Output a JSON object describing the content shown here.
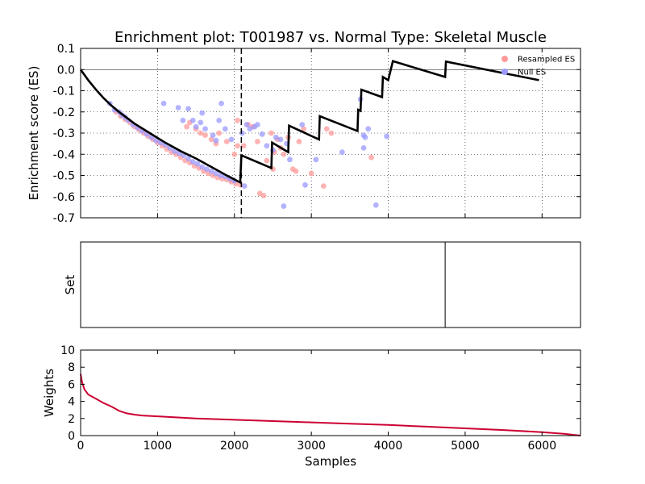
{
  "chart_data": [
    {
      "type": "line",
      "title": "Enrichment plot: T001987 vs. Normal Type: Skeletal Muscle",
      "ylabel": "Enrichment score (ES)",
      "xlim": [
        0,
        6500
      ],
      "ylim": [
        -0.7,
        0.1
      ],
      "yticks": [
        "0.1",
        "0.0",
        "-0.1",
        "-0.2",
        "-0.3",
        "-0.4",
        "-0.5",
        "-0.6",
        "-0.7"
      ],
      "grid": true,
      "legend_placement": "top-right",
      "legend": [
        {
          "label": "Resampled ES",
          "color": "#ff9999"
        },
        {
          "label": "Null ES",
          "color": "#9999ff"
        }
      ],
      "vline_x": 2090,
      "zero_line": 0.0,
      "es_curve": {
        "color": "#000000",
        "points": [
          [
            0,
            0.0
          ],
          [
            100,
            -0.05
          ],
          [
            200,
            -0.095
          ],
          [
            300,
            -0.135
          ],
          [
            400,
            -0.17
          ],
          [
            500,
            -0.2
          ],
          [
            700,
            -0.255
          ],
          [
            900,
            -0.3
          ],
          [
            1100,
            -0.345
          ],
          [
            1300,
            -0.385
          ],
          [
            1500,
            -0.42
          ],
          [
            1700,
            -0.46
          ],
          [
            1900,
            -0.5
          ],
          [
            2075,
            -0.533
          ],
          [
            2090,
            -0.405
          ],
          [
            2480,
            -0.465
          ],
          [
            2490,
            -0.345
          ],
          [
            2700,
            -0.39
          ],
          [
            2710,
            -0.265
          ],
          [
            3100,
            -0.33
          ],
          [
            3110,
            -0.22
          ],
          [
            3600,
            -0.29
          ],
          [
            3610,
            -0.19
          ],
          [
            3640,
            -0.195
          ],
          [
            3650,
            -0.095
          ],
          [
            3920,
            -0.13
          ],
          [
            3930,
            -0.035
          ],
          [
            4000,
            -0.05
          ],
          [
            4060,
            0.04
          ],
          [
            4740,
            -0.035
          ],
          [
            4750,
            0.038
          ],
          [
            5960,
            -0.05
          ]
        ]
      },
      "series": [
        {
          "name": "Resampled ES",
          "color": "#ff9999",
          "points": [
            [
              460,
              -0.2
            ],
            [
              520,
              -0.22
            ],
            [
              580,
              -0.235
            ],
            [
              640,
              -0.25
            ],
            [
              700,
              -0.27
            ],
            [
              760,
              -0.285
            ],
            [
              820,
              -0.3
            ],
            [
              880,
              -0.315
            ],
            [
              940,
              -0.33
            ],
            [
              1000,
              -0.345
            ],
            [
              1060,
              -0.36
            ],
            [
              1120,
              -0.375
            ],
            [
              1180,
              -0.39
            ],
            [
              1240,
              -0.4
            ],
            [
              1300,
              -0.415
            ],
            [
              1360,
              -0.43
            ],
            [
              1420,
              -0.44
            ],
            [
              1480,
              -0.455
            ],
            [
              1540,
              -0.465
            ],
            [
              1600,
              -0.48
            ],
            [
              1660,
              -0.49
            ],
            [
              1720,
              -0.5
            ],
            [
              1780,
              -0.51
            ],
            [
              1840,
              -0.515
            ],
            [
              1900,
              -0.52
            ],
            [
              1960,
              -0.53
            ],
            [
              2020,
              -0.54
            ],
            [
              2080,
              -0.545
            ],
            [
              1380,
              -0.27
            ],
            [
              1420,
              -0.25
            ],
            [
              1500,
              -0.28
            ],
            [
              1560,
              -0.3
            ],
            [
              1620,
              -0.31
            ],
            [
              1700,
              -0.33
            ],
            [
              1760,
              -0.35
            ],
            [
              1800,
              -0.3
            ],
            [
              1900,
              -0.34
            ],
            [
              2000,
              -0.4
            ],
            [
              2040,
              -0.36
            ],
            [
              2040,
              -0.24
            ],
            [
              2120,
              -0.36
            ],
            [
              2180,
              -0.26
            ],
            [
              2240,
              -0.27
            ],
            [
              2300,
              -0.34
            ],
            [
              2330,
              -0.585
            ],
            [
              2380,
              -0.595
            ],
            [
              2420,
              -0.43
            ],
            [
              2480,
              -0.3
            ],
            [
              2500,
              -0.47
            ],
            [
              2520,
              -0.39
            ],
            [
              2560,
              -0.33
            ],
            [
              2600,
              -0.37
            ],
            [
              2640,
              -0.4
            ],
            [
              2700,
              -0.32
            ],
            [
              2760,
              -0.47
            ],
            [
              2800,
              -0.48
            ],
            [
              2840,
              -0.34
            ],
            [
              2900,
              -0.28
            ],
            [
              3000,
              -0.49
            ],
            [
              3160,
              -0.55
            ],
            [
              3200,
              -0.28
            ],
            [
              3260,
              -0.3
            ],
            [
              3780,
              -0.415
            ],
            [
              1960,
              -0.52
            ]
          ]
        },
        {
          "name": "Null ES",
          "color": "#9999ff",
          "points": [
            [
              380,
              -0.16
            ],
            [
              440,
              -0.19
            ],
            [
              500,
              -0.2
            ],
            [
              540,
              -0.215
            ],
            [
              580,
              -0.225
            ],
            [
              620,
              -0.24
            ],
            [
              680,
              -0.26
            ],
            [
              740,
              -0.275
            ],
            [
              800,
              -0.29
            ],
            [
              860,
              -0.305
            ],
            [
              920,
              -0.32
            ],
            [
              980,
              -0.335
            ],
            [
              1040,
              -0.345
            ],
            [
              1100,
              -0.355
            ],
            [
              1160,
              -0.37
            ],
            [
              1220,
              -0.385
            ],
            [
              1280,
              -0.395
            ],
            [
              1340,
              -0.405
            ],
            [
              1400,
              -0.42
            ],
            [
              1460,
              -0.435
            ],
            [
              1520,
              -0.445
            ],
            [
              1580,
              -0.46
            ],
            [
              1640,
              -0.47
            ],
            [
              1700,
              -0.48
            ],
            [
              1760,
              -0.49
            ],
            [
              1820,
              -0.5
            ],
            [
              1880,
              -0.505
            ],
            [
              1940,
              -0.515
            ],
            [
              2000,
              -0.525
            ],
            [
              1080,
              -0.16
            ],
            [
              1270,
              -0.18
            ],
            [
              1330,
              -0.24
            ],
            [
              1400,
              -0.185
            ],
            [
              1460,
              -0.24
            ],
            [
              1500,
              -0.27
            ],
            [
              1560,
              -0.25
            ],
            [
              1580,
              -0.205
            ],
            [
              1620,
              -0.28
            ],
            [
              1720,
              -0.31
            ],
            [
              1760,
              -0.335
            ],
            [
              1800,
              -0.24
            ],
            [
              1830,
              -0.16
            ],
            [
              1880,
              -0.28
            ],
            [
              1960,
              -0.33
            ],
            [
              2100,
              -0.3
            ],
            [
              2130,
              -0.55
            ],
            [
              2160,
              -0.26
            ],
            [
              2200,
              -0.28
            ],
            [
              2260,
              -0.27
            ],
            [
              2300,
              -0.26
            ],
            [
              2360,
              -0.305
            ],
            [
              2420,
              -0.36
            ],
            [
              2500,
              -0.38
            ],
            [
              2540,
              -0.32
            ],
            [
              2600,
              -0.33
            ],
            [
              2640,
              -0.645
            ],
            [
              2680,
              -0.35
            ],
            [
              2720,
              -0.425
            ],
            [
              2880,
              -0.26
            ],
            [
              2920,
              -0.545
            ],
            [
              3060,
              -0.425
            ],
            [
              3400,
              -0.39
            ],
            [
              3640,
              -0.14
            ],
            [
              3680,
              -0.37
            ],
            [
              3700,
              -0.32
            ],
            [
              3740,
              -0.28
            ],
            [
              3840,
              -0.64
            ],
            [
              3980,
              -0.315
            ],
            [
              3680,
              -0.31
            ]
          ]
        }
      ]
    },
    {
      "type": "line",
      "ylabel": "Set",
      "xlim": [
        0,
        6500
      ],
      "set_hits": [
        4740
      ]
    },
    {
      "type": "line",
      "xlabel": "Samples",
      "ylabel": "Weights",
      "xlim": [
        0,
        6500
      ],
      "ylim": [
        0,
        10
      ],
      "xticks": [
        "0",
        "1000",
        "2000",
        "3000",
        "4000",
        "5000",
        "6000"
      ],
      "yticks": [
        "10",
        "8",
        "6",
        "4",
        "2",
        "0"
      ],
      "weights_curve": {
        "color": "#cc0033",
        "points": [
          [
            0,
            7.2
          ],
          [
            20,
            6.2
          ],
          [
            50,
            5.4
          ],
          [
            100,
            4.8
          ],
          [
            200,
            4.3
          ],
          [
            300,
            3.8
          ],
          [
            400,
            3.4
          ],
          [
            500,
            2.9
          ],
          [
            600,
            2.6
          ],
          [
            700,
            2.45
          ],
          [
            800,
            2.35
          ],
          [
            1000,
            2.25
          ],
          [
            1500,
            2.0
          ],
          [
            2000,
            1.85
          ],
          [
            2500,
            1.7
          ],
          [
            3000,
            1.55
          ],
          [
            3500,
            1.4
          ],
          [
            4000,
            1.25
          ],
          [
            4500,
            1.05
          ],
          [
            5000,
            0.85
          ],
          [
            5500,
            0.65
          ],
          [
            6000,
            0.4
          ],
          [
            6300,
            0.2
          ],
          [
            6450,
            0.05
          ],
          [
            6500,
            0.0
          ]
        ]
      }
    }
  ]
}
